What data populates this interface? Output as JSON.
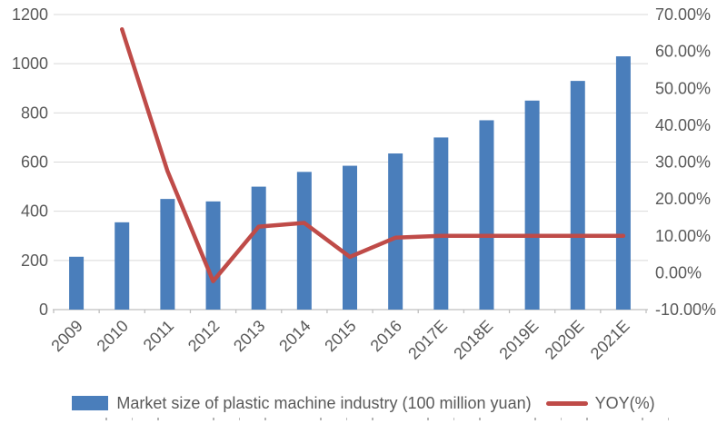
{
  "chart_data": {
    "type": "combo-bar-line",
    "title": "",
    "categories": [
      "2009",
      "2010",
      "2011",
      "2012",
      "2013",
      "2014",
      "2015",
      "2016",
      "2017E",
      "2018E",
      "2019E",
      "2020E",
      "2021E"
    ],
    "series": [
      {
        "name": "Market size of plastic machine industry (100 million yuan)",
        "type": "bar",
        "axis": "left",
        "color": "#4A7EBB",
        "values": [
          215,
          355,
          450,
          440,
          500,
          560,
          585,
          635,
          700,
          770,
          850,
          930,
          1030
        ]
      },
      {
        "name": "YOY(%)",
        "type": "line",
        "axis": "right",
        "color": "#BF4B48",
        "values": [
          null,
          66,
          27.5,
          -2.3,
          12.5,
          13.5,
          4.3,
          9.5,
          10,
          10,
          10,
          10,
          10
        ]
      }
    ],
    "left_axis": {
      "min": 0,
      "max": 1200,
      "step": 200,
      "ticks": [
        "0",
        "200",
        "400",
        "600",
        "800",
        "1000",
        "1200"
      ]
    },
    "right_axis": {
      "min": -10,
      "max": 70,
      "step": 10,
      "ticks": [
        "-10.00%",
        "0.00%",
        "10.00%",
        "20.00%",
        "30.00%",
        "40.00%",
        "50.00%",
        "60.00%",
        "70.00%"
      ]
    },
    "grid": true,
    "legend_position": "bottom",
    "colors": {
      "grid": "#D9D9D9",
      "axis_line": "#BFBFBF",
      "tick_text": "#595959"
    }
  }
}
